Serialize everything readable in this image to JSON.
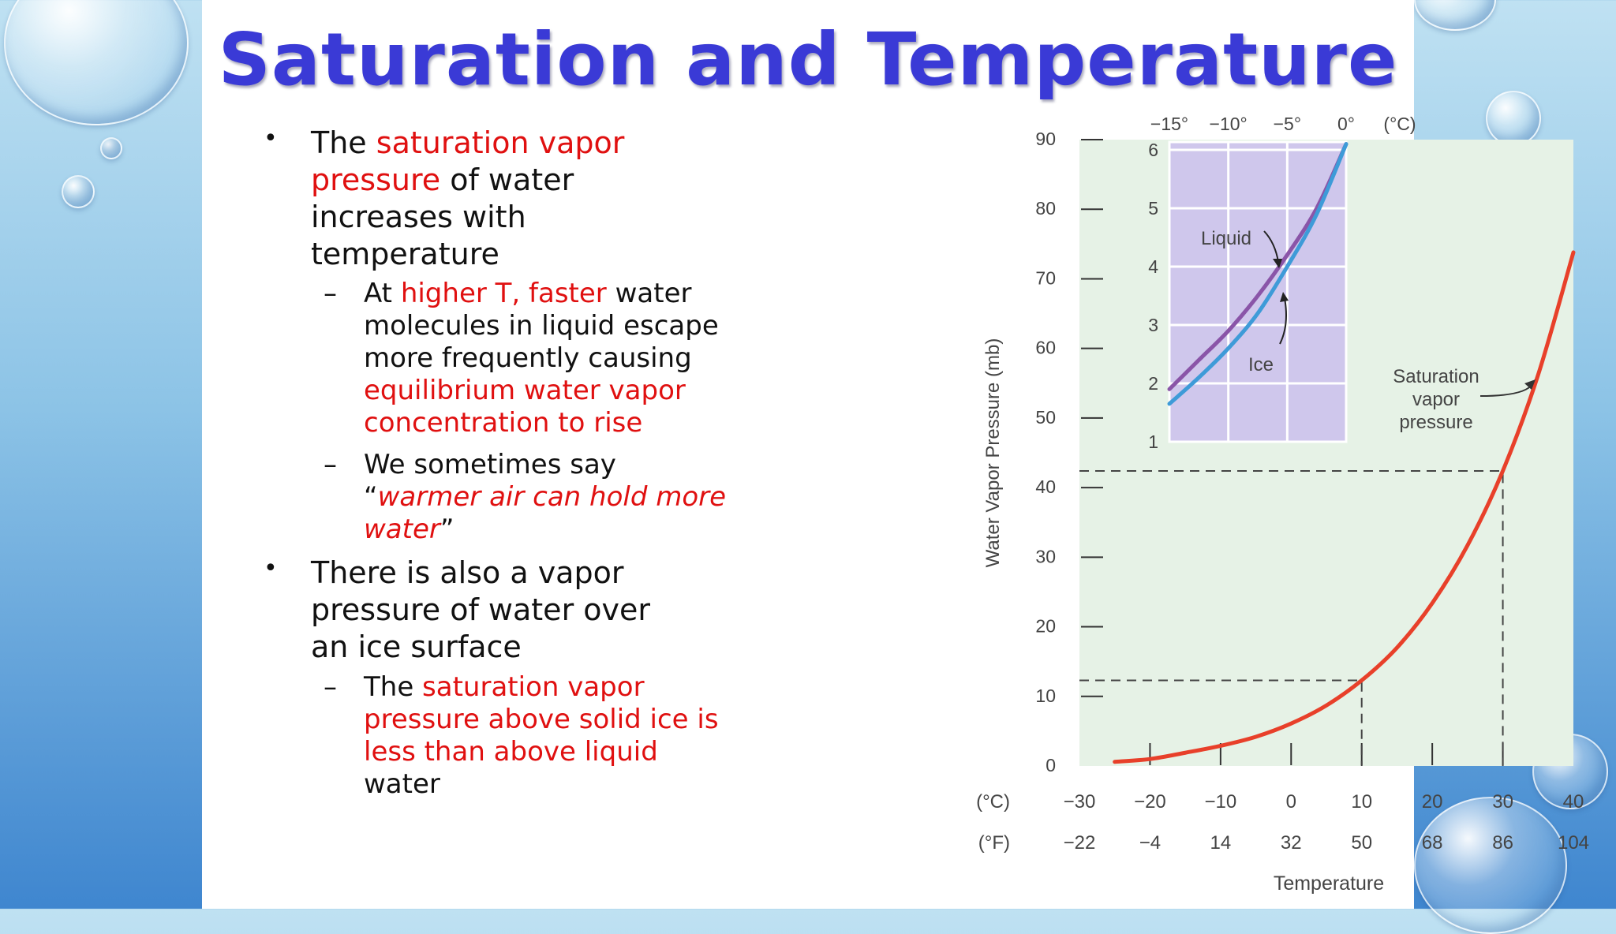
{
  "slide": {
    "title": "Saturation and Temperature",
    "bullets": [
      {
        "parts": [
          {
            "t": "The ",
            "style": "normal"
          },
          {
            "t": "saturation vapor pressure",
            "style": "red"
          },
          {
            "t": " of water increases with temperature",
            "style": "normal"
          }
        ],
        "subs": [
          {
            "parts": [
              {
                "t": "At ",
                "style": "normal"
              },
              {
                "t": "higher T, faster",
                "style": "red"
              },
              {
                "t": " water molecules in liquid escape more frequently causing ",
                "style": "normal"
              },
              {
                "t": "equilibrium water vapor concentration to rise",
                "style": "red"
              }
            ]
          },
          {
            "parts": [
              {
                "t": "We sometimes say “",
                "style": "normal"
              },
              {
                "t": "warmer air can hold more water",
                "style": "red-italic"
              },
              {
                "t": "”",
                "style": "normal"
              }
            ]
          }
        ]
      },
      {
        "parts": [
          {
            "t": "There is also a vapor pressure of water over an ice surface",
            "style": "normal"
          }
        ],
        "subs": [
          {
            "parts": [
              {
                "t": "The ",
                "style": "normal"
              },
              {
                "t": "saturation vapor pressure above solid ice is less than above liquid",
                "style": "red"
              },
              {
                "t": " water",
                "style": "normal"
              }
            ]
          }
        ]
      }
    ]
  },
  "chart_data": {
    "type": "line",
    "ylabel": "Water Vapor Pressure (mb)",
    "xlabel": "Temperature",
    "x_unit_c": "(°C)",
    "x_unit_f": "(°F)",
    "xlim": [
      -30,
      40
    ],
    "ylim": [
      0,
      90
    ],
    "x_ticks_c": [
      "-30",
      "-20",
      "-10",
      "0",
      "10",
      "20",
      "30",
      "40"
    ],
    "x_ticks_f": [
      "-22",
      "-4",
      "14",
      "32",
      "50",
      "68",
      "86",
      "104"
    ],
    "y_ticks": [
      "0",
      "10",
      "20",
      "30",
      "40",
      "50",
      "60",
      "70",
      "80",
      "90"
    ],
    "series": [
      {
        "name": "Saturation vapor pressure",
        "color": "#e8402a",
        "x": [
          -25,
          -20,
          -15,
          -10,
          -5,
          0,
          5,
          10,
          15,
          20,
          25,
          30,
          35,
          40
        ],
        "y": [
          0.6,
          1.0,
          1.9,
          2.9,
          4.2,
          6.1,
          8.7,
          12.3,
          17.0,
          23.4,
          31.7,
          42.4,
          56.2,
          73.8
        ]
      }
    ],
    "reference_lines": [
      {
        "x": 10,
        "y": 12.3
      },
      {
        "x": 30,
        "y": 42.4
      }
    ],
    "annotation": "Saturation vapor pressure",
    "inset": {
      "type": "line",
      "xlim": [
        -15,
        0
      ],
      "ylim": [
        1,
        6
      ],
      "x_unit": "(°C)",
      "x_ticks": [
        "-15°",
        "-10°",
        "-5°",
        "0°"
      ],
      "y_ticks": [
        "1",
        "2",
        "3",
        "4",
        "5",
        "6"
      ],
      "series": [
        {
          "name": "Liquid",
          "color": "#8a55a8",
          "x": [
            -15,
            -12.5,
            -10,
            -7.5,
            -5,
            -2.5,
            0
          ],
          "y": [
            1.9,
            2.4,
            2.9,
            3.5,
            4.2,
            5.0,
            6.1
          ]
        },
        {
          "name": "Ice",
          "color": "#3e9bd8",
          "x": [
            -15,
            -12.5,
            -10,
            -7.5,
            -5,
            -2.5,
            0
          ],
          "y": [
            1.65,
            2.1,
            2.6,
            3.2,
            4.0,
            4.9,
            6.1
          ]
        }
      ]
    }
  }
}
